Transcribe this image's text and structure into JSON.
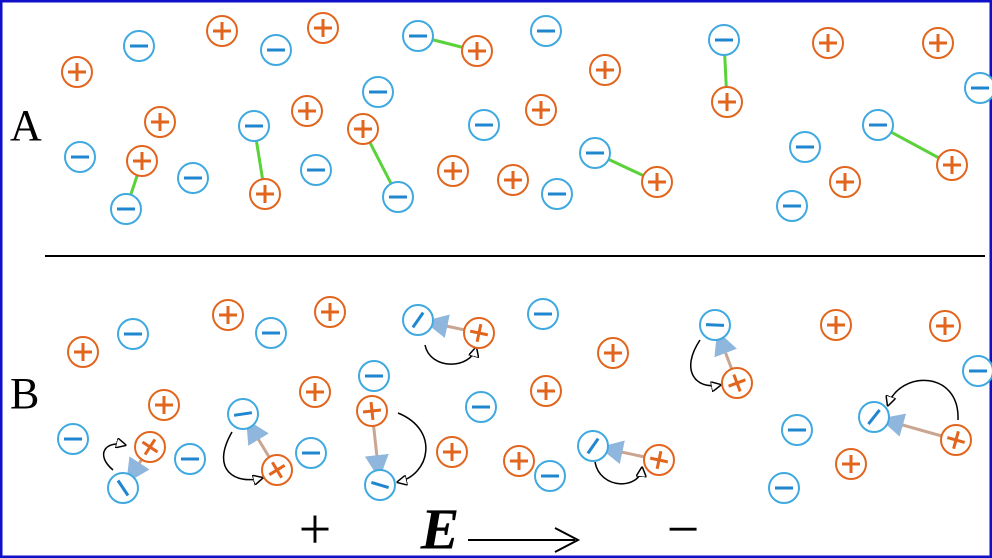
{
  "panels": [
    {
      "label": "A"
    },
    {
      "label": "B"
    }
  ],
  "field": {
    "plus": "+",
    "symbol": "E",
    "minus": "−"
  }
}
